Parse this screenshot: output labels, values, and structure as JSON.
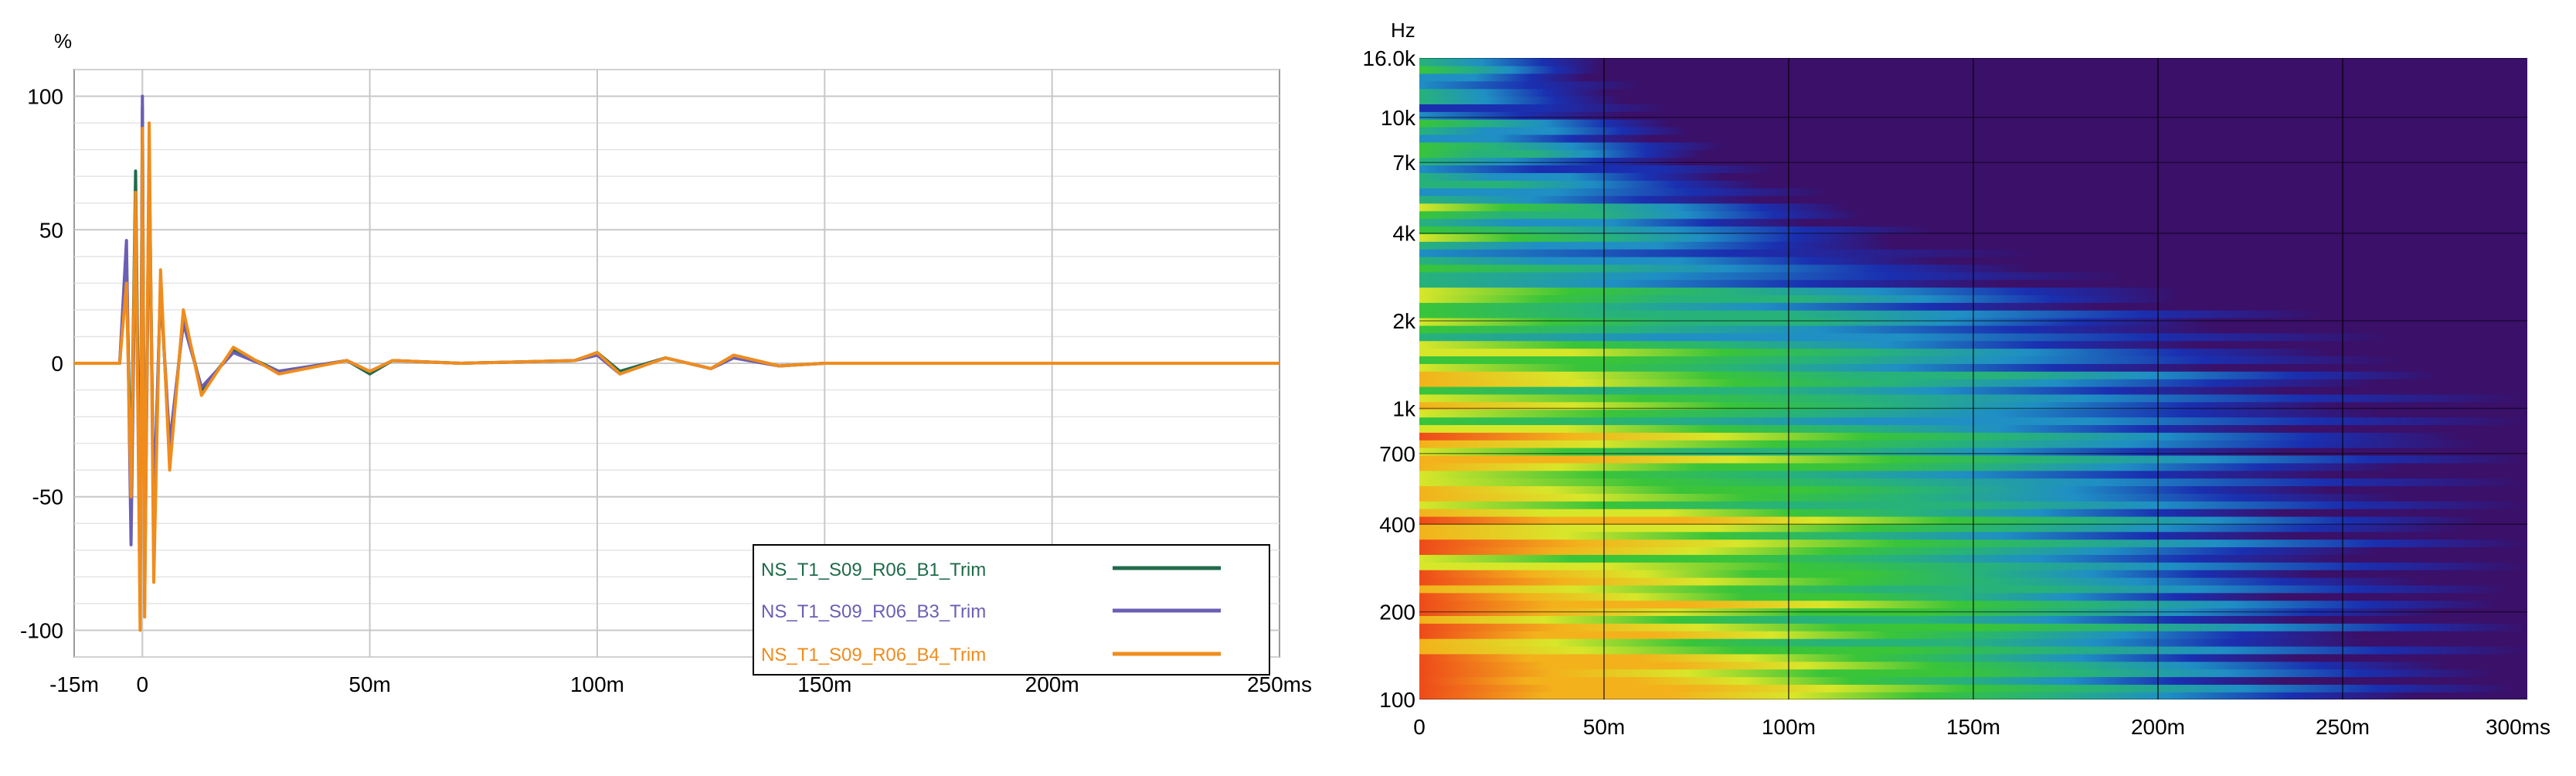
{
  "chart_data": [
    {
      "type": "line",
      "title": "",
      "ylabel": "%",
      "xlabel": "",
      "xlim": [
        -15,
        250
      ],
      "ylim": [
        -110,
        110
      ],
      "grid": true,
      "x_ticks": [
        {
          "value": -15,
          "label": "-15m"
        },
        {
          "value": 0,
          "label": "0"
        },
        {
          "value": 50,
          "label": "50m"
        },
        {
          "value": 100,
          "label": "100m"
        },
        {
          "value": 150,
          "label": "150m"
        },
        {
          "value": 200,
          "label": "200m"
        },
        {
          "value": 250,
          "label": "250ms"
        }
      ],
      "y_ticks": [
        {
          "value": 100,
          "label": "100"
        },
        {
          "value": 50,
          "label": "50"
        },
        {
          "value": 0,
          "label": "0"
        },
        {
          "value": -50,
          "label": "-50"
        },
        {
          "value": -100,
          "label": "-100"
        }
      ],
      "legend_position": "bottom-right",
      "series": [
        {
          "name": "NS_T1_S09_R06_B1_Trim",
          "color": "#1f6b4a",
          "x": [
            -15,
            -5,
            -3.5,
            -2.5,
            -1.5,
            -0.5,
            0,
            0.5,
            1.5,
            2.5,
            4,
            6,
            9,
            13,
            20,
            30,
            45,
            50,
            55,
            70,
            95,
            100,
            105,
            115,
            125,
            130,
            140,
            150,
            170,
            200,
            250
          ],
          "values": [
            0,
            0,
            38,
            -45,
            72,
            -78,
            96,
            -82,
            78,
            -60,
            30,
            -35,
            18,
            -10,
            5,
            -3,
            1,
            -4,
            1,
            0,
            1,
            4,
            -3,
            2,
            -2,
            3,
            -1,
            0,
            0,
            0,
            0
          ]
        },
        {
          "name": "NS_T1_S09_R06_B3_Trim",
          "color": "#6a5fb5",
          "x": [
            -15,
            -5,
            -3.5,
            -2.5,
            -1.5,
            -0.5,
            0,
            0.5,
            1.5,
            2.5,
            4,
            6,
            9,
            13,
            20,
            30,
            45,
            50,
            55,
            70,
            95,
            100,
            105,
            115,
            125,
            130,
            140,
            150,
            170,
            200,
            250
          ],
          "values": [
            0,
            0,
            46,
            -68,
            58,
            -84,
            100,
            -90,
            70,
            -55,
            28,
            -30,
            15,
            -9,
            4,
            -3,
            1,
            -3,
            1,
            0,
            1,
            3,
            -4,
            2,
            -2,
            2,
            -1,
            0,
            0,
            0,
            0
          ]
        },
        {
          "name": "NS_T1_S09_R06_B4_Trim",
          "color": "#f08c1c",
          "x": [
            -15,
            -5,
            -3.5,
            -2.5,
            -1.5,
            -0.5,
            0,
            0.5,
            1.5,
            2.5,
            4,
            6,
            9,
            13,
            20,
            30,
            45,
            50,
            55,
            70,
            95,
            100,
            105,
            115,
            125,
            130,
            140,
            150,
            170,
            200,
            250
          ],
          "values": [
            0,
            0,
            30,
            -50,
            64,
            -100,
            88,
            -95,
            90,
            -82,
            35,
            -40,
            20,
            -12,
            6,
            -4,
            1,
            -3,
            1,
            0,
            1,
            4,
            -4,
            2,
            -2,
            3,
            -1,
            0,
            0,
            0,
            0
          ]
        }
      ]
    },
    {
      "type": "heatmap",
      "title": "",
      "ylabel": "Hz",
      "xlabel": "",
      "x_range_ms": [
        0,
        300
      ],
      "y_range_hz": [
        100,
        16000
      ],
      "y_scale": "log",
      "x_ticks": [
        {
          "value": 0,
          "label": "0"
        },
        {
          "value": 50,
          "label": "50m"
        },
        {
          "value": 100,
          "label": "100m"
        },
        {
          "value": 150,
          "label": "150m"
        },
        {
          "value": 200,
          "label": "200m"
        },
        {
          "value": 250,
          "label": "250m"
        },
        {
          "value": 300,
          "label": "300ms"
        }
      ],
      "y_ticks": [
        {
          "value": 16000,
          "label": "16.0k"
        },
        {
          "value": 10000,
          "label": "10k"
        },
        {
          "value": 7000,
          "label": "7k"
        },
        {
          "value": 4000,
          "label": "4k"
        },
        {
          "value": 2000,
          "label": "2k"
        },
        {
          "value": 1000,
          "label": "1k"
        },
        {
          "value": 700,
          "label": "700"
        },
        {
          "value": 400,
          "label": "400"
        },
        {
          "value": 200,
          "label": "200"
        },
        {
          "value": 100,
          "label": "100"
        }
      ],
      "colormap": [
        "#3a1069",
        "#1a2fb0",
        "#1f8fc4",
        "#27b27a",
        "#39c43a",
        "#d8e62a",
        "#f3b21c",
        "#ee4a1a"
      ],
      "decay_time_ms_by_band": [
        {
          "freq_hz": 16000,
          "decay_end_ms": 50
        },
        {
          "freq_hz": 10000,
          "decay_end_ms": 70
        },
        {
          "freq_hz": 7000,
          "decay_end_ms": 90
        },
        {
          "freq_hz": 4000,
          "decay_end_ms": 140
        },
        {
          "freq_hz": 2000,
          "decay_end_ms": 250
        },
        {
          "freq_hz": 1000,
          "decay_end_ms": 300
        },
        {
          "freq_hz": 400,
          "decay_end_ms": 300
        },
        {
          "freq_hz": 100,
          "decay_end_ms": 300
        }
      ]
    }
  ]
}
